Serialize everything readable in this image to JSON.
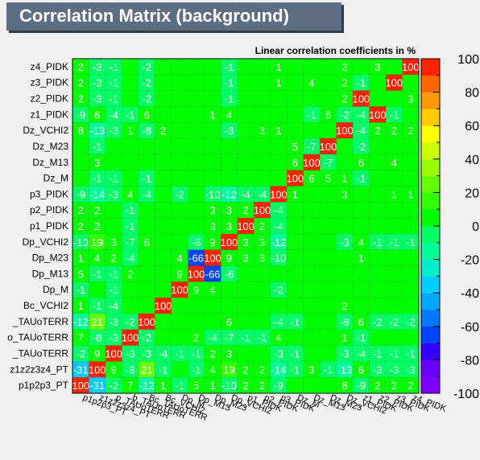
{
  "window": {
    "title": "Correlation Matrix (background)"
  },
  "chart_data": {
    "type": "heatmap",
    "title": "Correlation Matrix (background)",
    "subtitle": "Linear correlation coefficients in %",
    "variables": [
      "p1p2p3_PT",
      "z1z2z3z4_PT",
      "p_TAUoTERR",
      "b_TAUoTERR",
      "Bc_TAUoTERR",
      "Bc_VCHI2",
      "Dp_M",
      "Dp_M13",
      "Dp_M23",
      "Dp_VCHI2",
      "p1_PIDK",
      "p2_PIDK",
      "p3_PIDK",
      "Dz_M",
      "Dz_M13",
      "Dz_M23",
      "Dz_VCHI2",
      "z1_PIDK",
      "z2_PIDK",
      "z3_PIDK",
      "z4_PIDK"
    ],
    "row_labels": [
      "z4_PIDK",
      "z3_PIDK",
      "z2_PIDK",
      "z1_PIDK",
      "Dz_VCHI2",
      "Dz_M23",
      "Dz_M13",
      "Dz_M",
      "p3_PIDK",
      "p2_PIDK",
      "p1_PIDK",
      "Dp_VCHI2",
      "Dp_M23",
      "Dp_M13",
      "Dp_M",
      "Bc_VCHI2",
      "Bc_TAUoTERR",
      "b_TAUoTERR",
      "p_TAUoTERR",
      "z1z2z3z4_PT",
      "p1p2p3_PT"
    ],
    "column_labels": [
      "p1p2p3_PT",
      "z1z2z3z4_PT",
      "p_TAUoTERR",
      "b_TAUoTERR",
      "Bc_TAUoTERR",
      "Bc_VCHI2",
      "Dp_M",
      "Dp_M13",
      "Dp_M23",
      "Dp_VCHI2",
      "p1_PIDK",
      "p2_PIDK",
      "p3_PIDK",
      "Dz_M",
      "Dz_M13",
      "Dz_M23",
      "Dz_VCHI2",
      "z1_PIDK",
      "z2_PIDK",
      "z3_PIDK",
      "z4_PIDK"
    ],
    "row_labels_shown": [
      "z4_PIDK",
      "z3_PIDK",
      "z2_PIDK",
      "z1_PIDK",
      "Dz_VCHI2",
      "Dz_M23",
      "Dz_M13",
      "Dz_M",
      "p3_PIDK",
      "p2_PIDK",
      "p1_PIDK",
      "Dp_VCHI2",
      "Dp_M23",
      "Dp_M13",
      "Dp_M",
      "Bc_VCHI2",
      "_TAUoTERR",
      "o_TAUoTERR",
      "_TAUoTERR",
      "z1z2z3z4_PT",
      "p1p2p3_PT"
    ],
    "matrix": [
      [
        2,
        -3,
        -1,
        0,
        -2,
        0,
        0,
        0,
        0,
        -1,
        0,
        0,
        1,
        0,
        0,
        0,
        2,
        0,
        3,
        0,
        100
      ],
      [
        2,
        -3,
        -1,
        0,
        -2,
        0,
        0,
        0,
        0,
        -1,
        0,
        0,
        1,
        0,
        4,
        0,
        2,
        -1,
        0,
        100,
        0
      ],
      [
        2,
        -3,
        -1,
        0,
        -2,
        0,
        0,
        0,
        0,
        -1,
        0,
        0,
        0,
        0,
        0,
        0,
        2,
        100,
        0,
        0,
        3
      ],
      [
        -9,
        6,
        -4,
        -1,
        6,
        0,
        0,
        0,
        1,
        4,
        0,
        0,
        0,
        0,
        -1,
        6,
        -2,
        -4,
        100,
        -1,
        0
      ],
      [
        8,
        -13,
        -3,
        1,
        -8,
        2,
        0,
        0,
        0,
        -3,
        0,
        3,
        1,
        0,
        0,
        0,
        100,
        -4,
        2,
        2,
        2
      ],
      [
        0,
        -1,
        0,
        0,
        0,
        0,
        0,
        0,
        0,
        0,
        0,
        0,
        0,
        5,
        -7,
        100,
        0,
        -2,
        0,
        0,
        0
      ],
      [
        0,
        3,
        0,
        0,
        0,
        0,
        0,
        0,
        0,
        0,
        0,
        0,
        0,
        6,
        100,
        -7,
        0,
        6,
        0,
        4,
        0
      ],
      [
        0,
        -1,
        -1,
        0,
        -1,
        0,
        0,
        0,
        0,
        0,
        0,
        0,
        0,
        100,
        6,
        5,
        1,
        -1,
        0,
        0,
        0
      ],
      [
        -9,
        -14,
        -3,
        4,
        -4,
        0,
        -2,
        0,
        -10,
        -12,
        -4,
        -4,
        100,
        1,
        0,
        0,
        3,
        0,
        0,
        1,
        1
      ],
      [
        2,
        2,
        0,
        -1,
        0,
        0,
        0,
        0,
        3,
        3,
        2,
        100,
        -4,
        0,
        0,
        0,
        0,
        0,
        0,
        0,
        0
      ],
      [
        2,
        2,
        0,
        -1,
        0,
        0,
        0,
        0,
        3,
        3,
        100,
        2,
        -4,
        0,
        0,
        0,
        0,
        0,
        0,
        0,
        0
      ],
      [
        -10,
        19,
        3,
        -7,
        6,
        0,
        0,
        -6,
        9,
        100,
        3,
        3,
        -12,
        0,
        0,
        0,
        -3,
        4,
        -1,
        -1,
        -1
      ],
      [
        1,
        4,
        2,
        -4,
        0,
        0,
        4,
        -66,
        100,
        9,
        3,
        3,
        -10,
        0,
        0,
        0,
        0,
        1,
        0,
        0,
        0
      ],
      [
        5,
        -1,
        -1,
        2,
        0,
        0,
        9,
        100,
        -66,
        -6,
        0,
        0,
        0,
        0,
        0,
        0,
        0,
        0,
        0,
        0,
        0
      ],
      [
        -1,
        0,
        -1,
        0,
        0,
        0,
        100,
        9,
        4,
        0,
        0,
        0,
        -2,
        0,
        0,
        0,
        0,
        0,
        0,
        0,
        0
      ],
      [
        1,
        -1,
        -4,
        0,
        0,
        100,
        0,
        0,
        0,
        0,
        0,
        0,
        0,
        0,
        0,
        0,
        2,
        0,
        0,
        0,
        0
      ],
      [
        -12,
        21,
        -3,
        -2,
        100,
        0,
        0,
        0,
        0,
        6,
        0,
        0,
        -4,
        -1,
        0,
        0,
        -8,
        6,
        -2,
        -2,
        -2
      ],
      [
        7,
        -8,
        -3,
        100,
        -2,
        0,
        0,
        2,
        -4,
        -7,
        -1,
        -1,
        4,
        0,
        0,
        0,
        1,
        -1,
        0,
        0,
        0
      ],
      [
        -2,
        9,
        100,
        -3,
        -3,
        -4,
        -1,
        -1,
        2,
        3,
        0,
        0,
        -3,
        -1,
        0,
        0,
        -3,
        -4,
        -1,
        -1,
        -1
      ],
      [
        -31,
        100,
        9,
        -8,
        21,
        -1,
        0,
        -1,
        4,
        19,
        2,
        2,
        -14,
        -1,
        3,
        -1,
        -13,
        6,
        -3,
        -3,
        -3
      ],
      [
        100,
        -31,
        -2,
        7,
        -12,
        1,
        -1,
        5,
        1,
        -10,
        2,
        2,
        -9,
        0,
        0,
        0,
        8,
        -9,
        2,
        2,
        2
      ]
    ],
    "zlim": [
      -100,
      100
    ],
    "z_ticks": [
      100,
      80,
      60,
      40,
      20,
      0,
      -20,
      -40,
      -60,
      -80,
      -100
    ],
    "colorbar": {
      "min": -100,
      "max": 100,
      "nbins": 20,
      "colors": [
        "#7f00ff",
        "#6a00ff",
        "#3300ff",
        "#0044ff",
        "#0077ff",
        "#00aaff",
        "#00ccff",
        "#00eecc",
        "#00ff99",
        "#00ff66",
        "#00ff00",
        "#33ff00",
        "#66ff00",
        "#99ff00",
        "#ccff00",
        "#ffff00",
        "#ffcc00",
        "#ff9900",
        "#ff6600",
        "#ff2200"
      ]
    },
    "grid": true,
    "legend": "colorbar-right"
  }
}
